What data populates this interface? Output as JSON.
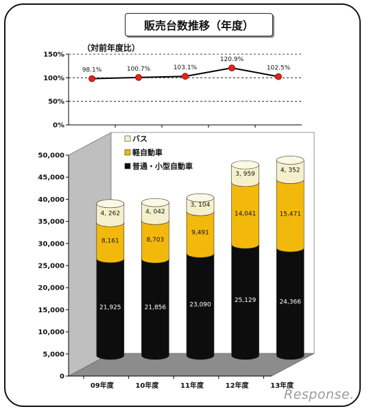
{
  "title": "販売台数推移（年度）",
  "watermark": "Response.",
  "colors": {
    "bus": "#f5f0cc",
    "kei": "#f2b90c",
    "regular": "#0d0d0d",
    "line": "#000000",
    "marker": "#e8231b"
  },
  "chart_data": [
    {
      "type": "line",
      "ylabel": "（対前年度比）",
      "categories": [
        "09年度",
        "10年度",
        "11年度",
        "12年度",
        "13年度"
      ],
      "values": [
        98.1,
        100.7,
        103.1,
        120.9,
        102.5
      ],
      "labels": [
        "98.1%",
        "100.7%",
        "103.1%",
        "120.9%",
        "102.5%"
      ],
      "ylim": [
        0,
        150
      ],
      "yticks": [
        "0%",
        "50%",
        "100%",
        "150%"
      ],
      "grid": true
    },
    {
      "type": "bar",
      "stacked": true,
      "three_d": true,
      "categories": [
        "09年度",
        "10年度",
        "11年度",
        "12年度",
        "13年度"
      ],
      "series": [
        {
          "name": "普通・小型自動車",
          "values": [
            21925,
            21856,
            23090,
            25129,
            24366
          ],
          "labels": [
            "21,925",
            "21,856",
            "23,090",
            "25,129",
            "24,366"
          ]
        },
        {
          "name": "軽自動車",
          "values": [
            8161,
            8703,
            9491,
            14041,
            15471
          ],
          "labels": [
            "8,161",
            "8,703",
            "9,491",
            "14,041",
            "15,471"
          ]
        },
        {
          "name": "バス",
          "values": [
            4262,
            4042,
            3104,
            3959,
            4352
          ],
          "labels": [
            "4, 262",
            "4, 042",
            "3, 104",
            "3, 959",
            "4, 352"
          ]
        }
      ],
      "legend": [
        "バス",
        "軽自動車",
        "普通・小型自動車"
      ],
      "legend_position": "top-left",
      "ylim": [
        0,
        50000
      ],
      "yticks": [
        "0",
        "5,000",
        "10,000",
        "15,000",
        "20,000",
        "25,000",
        "30,000",
        "35,000",
        "40,000",
        "45,000",
        "50,000"
      ]
    }
  ]
}
